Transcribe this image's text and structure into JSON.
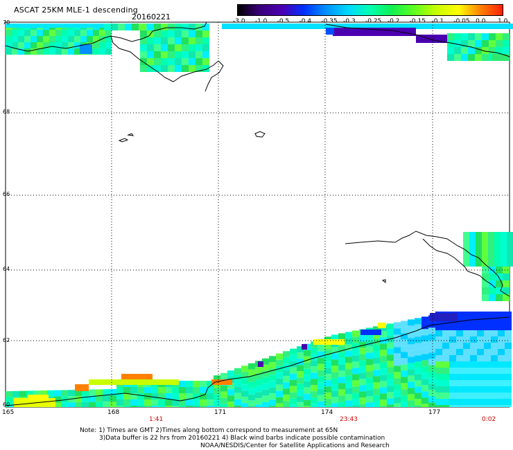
{
  "header": {
    "title": "ASCAT 25KM MLE-1 descending",
    "date": "20160221"
  },
  "colorbar": {
    "labels": [
      "-3.0",
      "-1.0",
      "-0.5",
      "-0.4",
      "-0.35",
      "-0.3",
      "-0.25",
      "-0.2",
      "-0.15",
      "-0.1",
      "-0.05",
      "0.0",
      "1.0"
    ],
    "colors": [
      "#000000",
      "#3a007a",
      "#4b00b0",
      "#0030ff",
      "#0090ff",
      "#00d8ff",
      "#00ffb0",
      "#10f050",
      "#60ff20",
      "#c8ff00",
      "#ffff00",
      "#ff8000",
      "#ff2000"
    ]
  },
  "map": {
    "lat_labels": [
      "70",
      "68",
      "66",
      "64",
      "62",
      "60"
    ],
    "lon_labels": [
      "165",
      "168",
      "171",
      "174",
      "177"
    ],
    "time_labels": [
      "1:41",
      "23:43",
      "0:02"
    ]
  },
  "footer": {
    "note_line1": "Note: 1) Times are GMT 2)Times along bottom correspond to measurement at 65N",
    "note_line2": "3)Data buffer is 22 hrs from 20160221 4) Black wind barbs indicate possible contamination",
    "note_line3": "NOAA/NESDIS/Center for Satellite Applications and Research"
  }
}
